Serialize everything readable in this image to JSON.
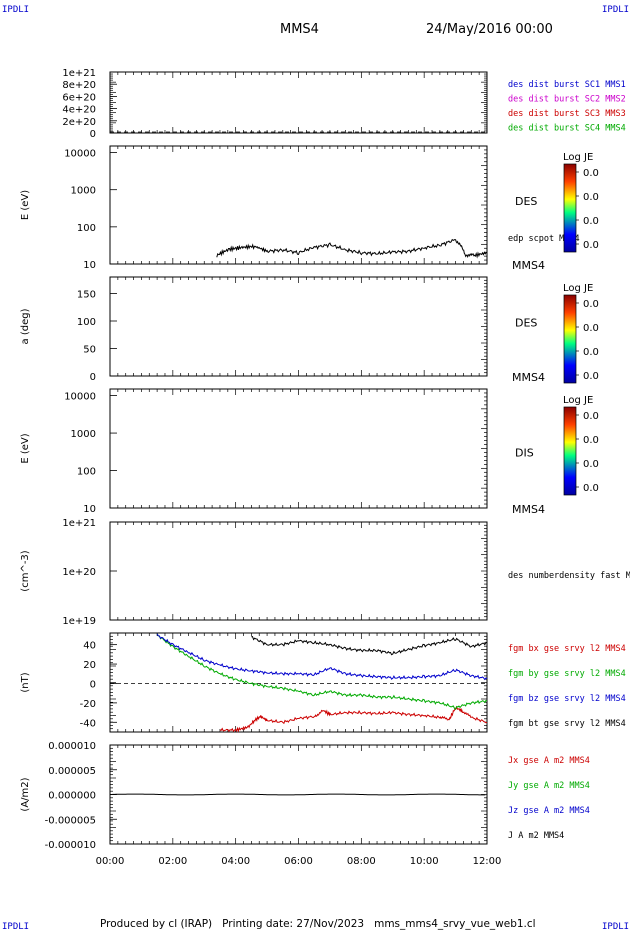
{
  "header": {
    "corner_tl": "IPDLI",
    "corner_tr": "IPDLI",
    "corner_bl": "IPDLI",
    "corner_br": "IPDLI",
    "spacecraft": "MMS4",
    "date": "24/May/2016 00:00"
  },
  "footer": {
    "text": "Produced by cl (IRAP)   Printing date: 27/Nov/2023   mms_mms4_srvy_vue_web1.cl"
  },
  "colorbar": {
    "title": "Log JE",
    "ticks": [
      "0.0",
      "0.0",
      "0.0",
      "0.0"
    ]
  },
  "colors": {
    "black": "#000000",
    "blue": "#0000cc",
    "magenta": "#cc00cc",
    "red": "#cc0000",
    "green": "#00aa00"
  },
  "chart_data": [
    {
      "type": "line",
      "ylim": [
        0,
        1e+21
      ],
      "ytick_labels": [
        "1e+21",
        "8e+20",
        "6e+20",
        "4e+20",
        "2e+20",
        "0"
      ],
      "series": [
        {
          "name": "des dist burst SC1 MMS1",
          "color": "#0000cc"
        },
        {
          "name": "des dist burst SC2 MMS2",
          "color": "#cc00cc"
        },
        {
          "name": "des dist burst SC3 MMS3",
          "color": "#cc0000"
        },
        {
          "name": "des dist burst SC4 MMS4",
          "color": "#00aa00"
        }
      ]
    },
    {
      "type": "heatmap",
      "ylabel": "E (eV)",
      "yscale": "log",
      "ylim": [
        10,
        15000
      ],
      "ytick_labels": [
        "10000",
        "1000",
        "100",
        "10"
      ],
      "instrument": "DES",
      "sc": "MMS4",
      "series": [
        {
          "name": "edp scpot MMS4",
          "color": "#000000",
          "x_hours": [
            3.4,
            3.8,
            4.2,
            4.6,
            5.0,
            5.5,
            6.0,
            6.5,
            7.0,
            7.5,
            8.0,
            8.5,
            9.0,
            9.5,
            10.0,
            10.5,
            11.0,
            11.3,
            11.6,
            12.0
          ],
          "values": [
            17,
            25,
            28,
            30,
            22,
            24,
            20,
            28,
            33,
            24,
            20,
            19,
            21,
            22,
            27,
            32,
            45,
            18,
            17,
            20
          ]
        }
      ]
    },
    {
      "type": "heatmap",
      "ylabel": "a (deg)",
      "ylim": [
        0,
        180
      ],
      "ytick_labels": [
        "150",
        "100",
        "50",
        "0"
      ],
      "instrument": "DES",
      "sc": "MMS4"
    },
    {
      "type": "heatmap",
      "ylabel": "E (eV)",
      "yscale": "log",
      "ylim": [
        10,
        15000
      ],
      "ytick_labels": [
        "10000",
        "1000",
        "100",
        "10"
      ],
      "instrument": "DIS",
      "sc": "MMS4"
    },
    {
      "type": "line",
      "ylabel": "(cm^-3)",
      "yscale": "log",
      "ylim": [
        1e+19,
        1e+21
      ],
      "ytick_labels": [
        "1e+21",
        "1e+20",
        "1e+19"
      ],
      "series": [
        {
          "name": "des numberdensity fast M",
          "color": "#000000"
        }
      ]
    },
    {
      "type": "line",
      "ylabel": "(nT)",
      "ylim": [
        -50,
        52
      ],
      "ytick_labels": [
        "40",
        "20",
        "0",
        "-20",
        "-40"
      ],
      "series": [
        {
          "name": "fgm bx gse srvy l2 MMS4",
          "color": "#cc0000",
          "x_hours": [
            3.5,
            4.0,
            4.4,
            4.6,
            4.8,
            5.0,
            5.5,
            6.0,
            6.5,
            6.8,
            7.0,
            7.5,
            8.0,
            8.5,
            9.0,
            9.5,
            10.0,
            10.5,
            10.8,
            11.0,
            11.2,
            11.5,
            12.0
          ],
          "values": [
            -48,
            -48,
            -45,
            -38,
            -34,
            -38,
            -40,
            -36,
            -34,
            -28,
            -32,
            -30,
            -30,
            -31,
            -30,
            -32,
            -33,
            -35,
            -37,
            -25,
            -28,
            -35,
            -40
          ]
        },
        {
          "name": "fgm by gse srvy l2 MMS4",
          "color": "#00aa00",
          "x_hours": [
            1.5,
            2.0,
            2.5,
            3.0,
            3.5,
            4.0,
            4.5,
            5.0,
            5.5,
            6.0,
            6.5,
            7.0,
            7.5,
            8.0,
            8.5,
            9.0,
            9.5,
            10.0,
            10.5,
            11.0,
            11.5,
            12.0
          ],
          "values": [
            50,
            38,
            28,
            18,
            10,
            4,
            0,
            -3,
            -5,
            -8,
            -12,
            -8,
            -12,
            -12,
            -14,
            -14,
            -16,
            -18,
            -20,
            -25,
            -20,
            -18
          ]
        },
        {
          "name": "fgm bz gse srvy l2 MMS4",
          "color": "#0000cc",
          "x_hours": [
            1.5,
            2.0,
            2.5,
            3.0,
            3.5,
            4.0,
            4.5,
            5.0,
            5.5,
            6.0,
            6.5,
            7.0,
            7.5,
            8.0,
            8.5,
            9.0,
            9.5,
            10.0,
            10.5,
            11.0,
            11.5,
            12.0
          ],
          "values": [
            50,
            40,
            32,
            24,
            19,
            15,
            13,
            11,
            10,
            10,
            9,
            16,
            10,
            8,
            7,
            6,
            6,
            7,
            8,
            14,
            8,
            5
          ]
        },
        {
          "name": "fgm bt gse srvy l2 MMS4",
          "color": "#000000",
          "x_hours": [
            4.5,
            5.0,
            5.5,
            6.0,
            6.5,
            7.0,
            7.5,
            8.0,
            8.5,
            9.0,
            9.5,
            10.0,
            10.5,
            11.0,
            11.5,
            12.0
          ],
          "values": [
            48,
            40,
            40,
            44,
            42,
            40,
            36,
            34,
            34,
            31,
            35,
            39,
            42,
            46,
            38,
            42
          ]
        }
      ]
    },
    {
      "type": "line",
      "ylabel": "(A/m2)",
      "ylim": [
        -1e-05,
        1e-05
      ],
      "ytick_labels": [
        "0.000010",
        "0.000005",
        "0.000000",
        "-0.000005",
        "-0.000010"
      ],
      "series": [
        {
          "name": "Jx gse A m2 MMS4",
          "color": "#cc0000"
        },
        {
          "name": "Jy gse A m2 MMS4",
          "color": "#00aa00"
        },
        {
          "name": "Jz gse A m2 MMS4",
          "color": "#0000cc"
        },
        {
          "name": "J A m2 MMS4",
          "color": "#000000"
        }
      ]
    }
  ],
  "xaxis": {
    "tick_labels": [
      "00:00",
      "02:00",
      "04:00",
      "06:00",
      "08:00",
      "10:00",
      "12:00"
    ],
    "xlim_hours": [
      0,
      12
    ]
  }
}
